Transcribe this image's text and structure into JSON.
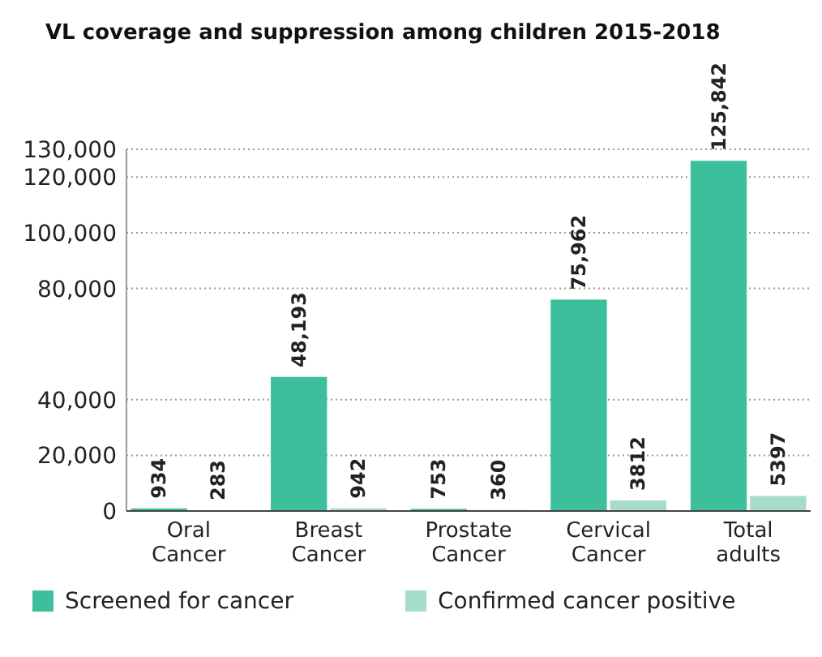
{
  "chart_data": {
    "type": "bar",
    "title": "VL coverage and suppression among children 2015-2018",
    "categories": [
      "Oral\nCancer",
      "Breast\nCancer",
      "Prostate\nCancer",
      "Cervical\nCancer",
      "Total\nadults"
    ],
    "series": [
      {
        "name": "Screened for cancer",
        "color": "#3dbf9c",
        "values": [
          934,
          48193,
          753,
          75962,
          125842
        ],
        "value_labels": [
          "934",
          "48,193",
          "753",
          "75,962",
          "125,842"
        ]
      },
      {
        "name": "Confirmed cancer positive",
        "color": "#a6dcc8",
        "values": [
          283,
          942,
          360,
          3812,
          5397
        ],
        "value_labels": [
          "283",
          "942",
          "360",
          "3812",
          "5397"
        ]
      }
    ],
    "ylim": [
      0,
      130000
    ],
    "yticks": [
      {
        "value": 0,
        "label": "0"
      },
      {
        "value": 20000,
        "label": "20,000"
      },
      {
        "value": 40000,
        "label": "40,000"
      },
      {
        "value": 80000,
        "label": "80,000"
      },
      {
        "value": 100000,
        "label": "100,000"
      },
      {
        "value": 120000,
        "label": "120,000"
      },
      {
        "value": 130000,
        "label": "130,000"
      }
    ],
    "grid": "y",
    "legend": "bottom"
  }
}
